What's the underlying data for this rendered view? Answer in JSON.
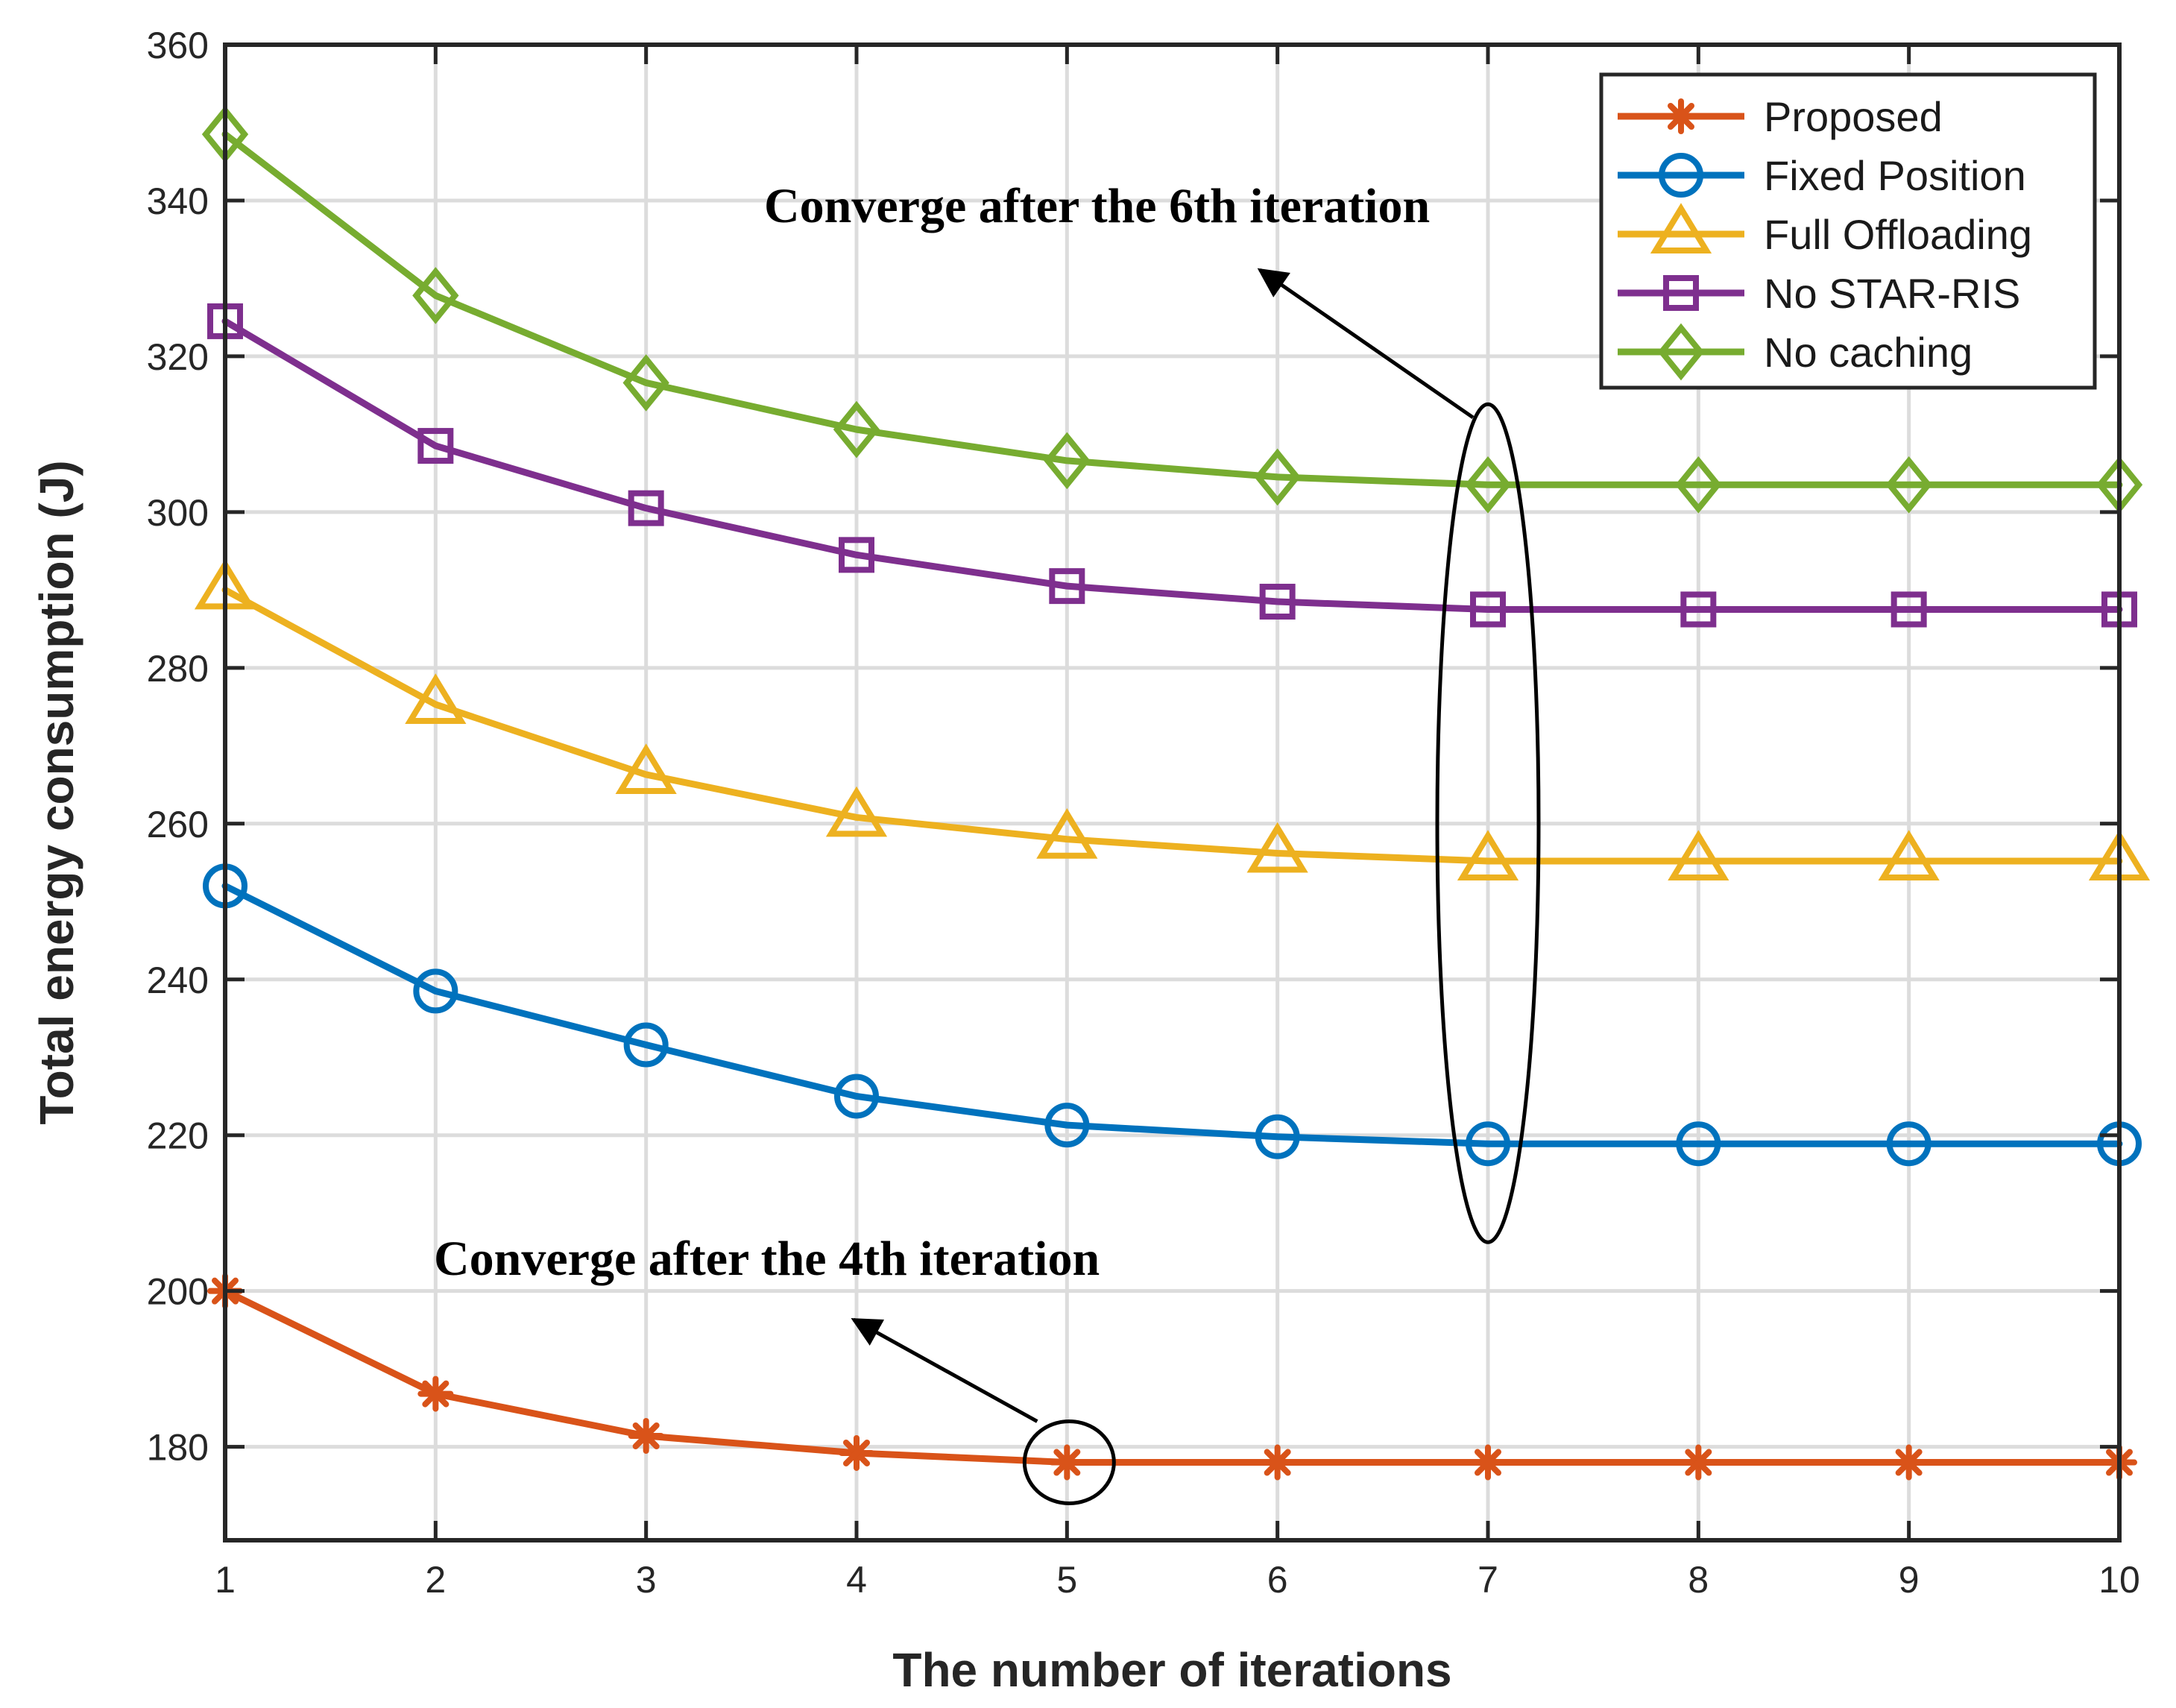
{
  "chart_data": {
    "type": "line",
    "title": "",
    "xlabel": "The number of iterations",
    "ylabel": "Total energy consumption (J)",
    "x": [
      1,
      2,
      3,
      4,
      5,
      6,
      7,
      8,
      9,
      10
    ],
    "xlim": [
      1,
      10
    ],
    "ylim": [
      168,
      360
    ],
    "xticks": [
      1,
      2,
      3,
      4,
      5,
      6,
      7,
      8,
      9,
      10
    ],
    "yticks": [
      180,
      200,
      220,
      240,
      260,
      280,
      300,
      320,
      340,
      360
    ],
    "grid": true,
    "legend_position": "top-right",
    "series": [
      {
        "name": "Proposed",
        "color": "#D95319",
        "marker": "asterisk",
        "values": [
          200,
          186.8,
          181.4,
          179.2,
          178,
          178,
          178,
          178,
          178,
          178
        ]
      },
      {
        "name": "Fixed Position",
        "color": "#0072BD",
        "marker": "circle",
        "values": [
          252,
          238.5,
          231.6,
          225,
          221.3,
          219.8,
          218.9,
          218.9,
          218.9,
          218.9
        ]
      },
      {
        "name": "Full Offloading",
        "color": "#EDB120",
        "marker": "triangle",
        "values": [
          290,
          275.3,
          266.3,
          260.8,
          258,
          256.2,
          255.2,
          255.2,
          255.2,
          255.2
        ]
      },
      {
        "name": "No STAR-RIS",
        "color": "#7E2F8E",
        "marker": "square",
        "values": [
          324.5,
          308.5,
          300.5,
          294.5,
          290.5,
          288.5,
          287.5,
          287.5,
          287.5,
          287.5
        ]
      },
      {
        "name": "No caching",
        "color": "#77AC30",
        "marker": "diamond",
        "values": [
          348.5,
          327.8,
          316.6,
          310.6,
          306.6,
          304.5,
          303.5,
          303.5,
          303.5,
          303.5
        ]
      }
    ],
    "annotations": [
      {
        "text": "Converge after the 6th iteration",
        "target_x": 7,
        "target_series": [
          "Fixed Position",
          "Full Offloading",
          "No STAR-RIS",
          "No caching"
        ]
      },
      {
        "text": "Converge after the 4th iteration",
        "target_x": 5,
        "target_series": [
          "Proposed"
        ]
      }
    ]
  }
}
